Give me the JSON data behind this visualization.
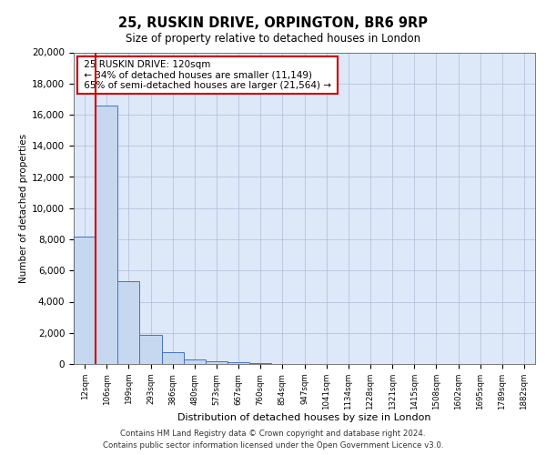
{
  "title_line1": "25, RUSKIN DRIVE, ORPINGTON, BR6 9RP",
  "title_line2": "Size of property relative to detached houses in London",
  "xlabel": "Distribution of detached houses by size in London",
  "ylabel": "Number of detached properties",
  "bar_labels": [
    "12sqm",
    "106sqm",
    "199sqm",
    "293sqm",
    "386sqm",
    "480sqm",
    "573sqm",
    "667sqm",
    "760sqm",
    "854sqm",
    "947sqm",
    "1041sqm",
    "1134sqm",
    "1228sqm",
    "1321sqm",
    "1415sqm",
    "1508sqm",
    "1602sqm",
    "1695sqm",
    "1789sqm",
    "1882sqm"
  ],
  "bar_values": [
    8200,
    16600,
    5300,
    1850,
    750,
    300,
    150,
    100,
    80,
    0,
    0,
    0,
    0,
    0,
    0,
    0,
    0,
    0,
    0,
    0,
    0
  ],
  "bar_color": "#c5d8f0",
  "bar_edge_color": "#4472c4",
  "vline_x": 1,
  "vline_color": "#cc0000",
  "annotation_title": "25 RUSKIN DRIVE: 120sqm",
  "annotation_line1": "← 34% of detached houses are smaller (11,149)",
  "annotation_line2": "65% of semi-detached houses are larger (21,564) →",
  "annotation_box_color": "#ffffff",
  "annotation_box_edge": "#cc0000",
  "ylim": [
    0,
    20000
  ],
  "yticks": [
    0,
    2000,
    4000,
    6000,
    8000,
    10000,
    12000,
    14000,
    16000,
    18000,
    20000
  ],
  "background_color": "#dde8f8",
  "footer_line1": "Contains HM Land Registry data © Crown copyright and database right 2024.",
  "footer_line2": "Contains public sector information licensed under the Open Government Licence v3.0."
}
